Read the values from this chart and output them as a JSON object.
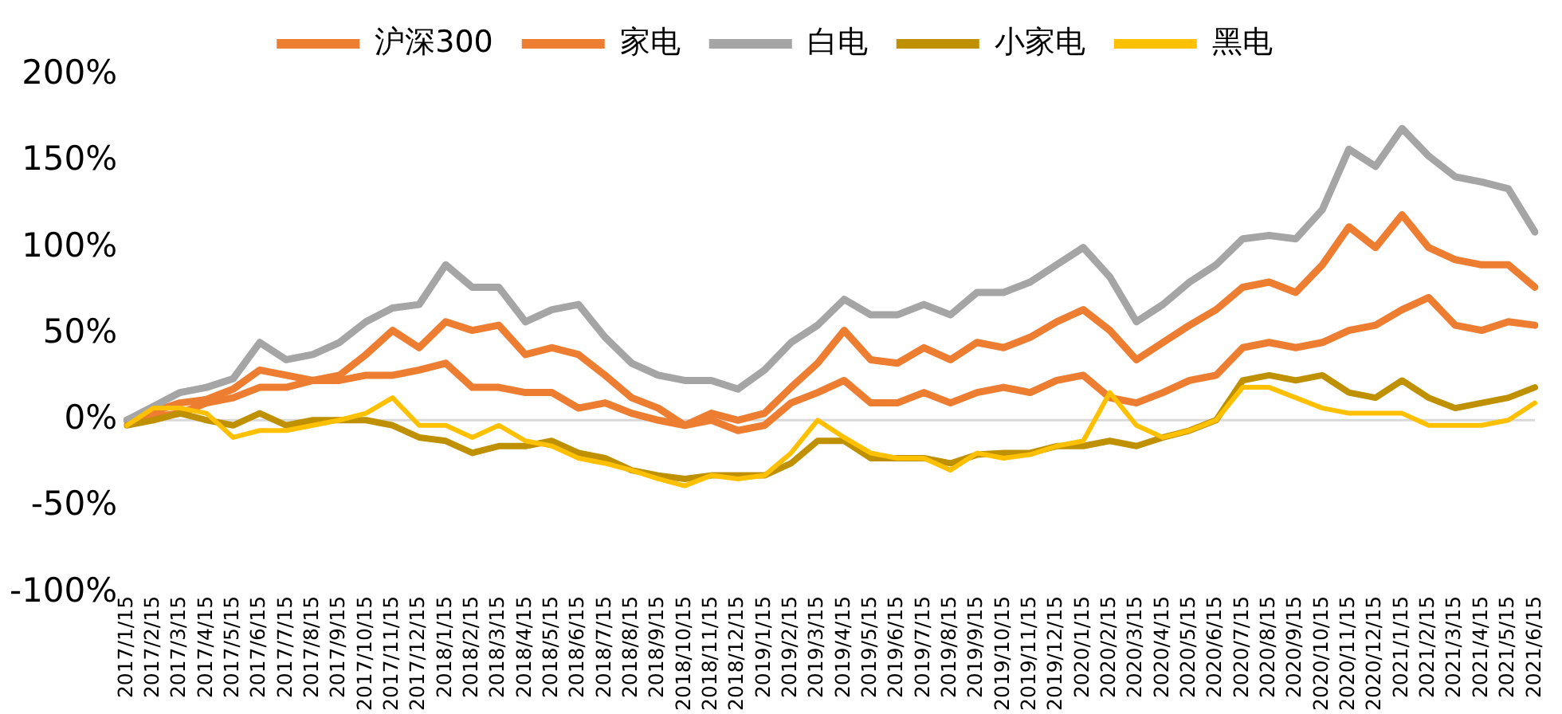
{
  "chart_data": {
    "type": "line",
    "categories": [
      "2017/1/15",
      "2017/2/15",
      "2017/3/15",
      "2017/4/15",
      "2017/5/15",
      "2017/6/15",
      "2017/7/15",
      "2017/8/15",
      "2017/9/15",
      "2017/10/15",
      "2017/11/15",
      "2017/12/15",
      "2018/1/15",
      "2018/2/15",
      "2018/3/15",
      "2018/4/15",
      "2018/5/15",
      "2018/6/15",
      "2018/7/15",
      "2018/8/15",
      "2018/9/15",
      "2018/10/15",
      "2018/11/15",
      "2018/12/15",
      "2019/1/15",
      "2019/2/15",
      "2019/3/15",
      "2019/4/15",
      "2019/5/15",
      "2019/6/15",
      "2019/7/15",
      "2019/8/15",
      "2019/9/15",
      "2019/10/15",
      "2019/11/15",
      "2019/12/15",
      "2020/1/15",
      "2020/2/15",
      "2020/3/15",
      "2020/4/15",
      "2020/5/15",
      "2020/6/15",
      "2020/7/15",
      "2020/8/15",
      "2020/9/15",
      "2020/10/15",
      "2020/11/15",
      "2020/12/15",
      "2021/1/15",
      "2021/2/15",
      "2021/3/15",
      "2021/4/15",
      "2021/5/15",
      "2021/6/15"
    ],
    "series": [
      {
        "name": "沪深300",
        "color": "#ed7d31",
        "values": [
          0,
          2,
          4,
          10,
          13,
          19,
          19,
          23,
          23,
          26,
          26,
          29,
          33,
          19,
          19,
          16,
          16,
          7,
          10,
          4,
          0,
          -3,
          0,
          -6,
          -3,
          10,
          16,
          23,
          10,
          10,
          16,
          10,
          16,
          19,
          16,
          23,
          26,
          13,
          10,
          16,
          23,
          26,
          42,
          45,
          42,
          45,
          52,
          55,
          64,
          71,
          55,
          52,
          57,
          55
        ]
      },
      {
        "name": "家电",
        "color": "#ed7d31",
        "values": [
          0,
          5,
          10,
          12,
          18,
          29,
          26,
          23,
          26,
          38,
          52,
          42,
          57,
          52,
          55,
          38,
          42,
          38,
          26,
          13,
          7,
          -3,
          4,
          0,
          4,
          19,
          33,
          52,
          35,
          33,
          42,
          35,
          45,
          42,
          48,
          57,
          64,
          52,
          35,
          45,
          55,
          64,
          77,
          80,
          74,
          90,
          112,
          100,
          119,
          100,
          93,
          90,
          90,
          77
        ]
      },
      {
        "name": "白电",
        "color": "#a5a5a5",
        "values": [
          0,
          8,
          16,
          19,
          24,
          45,
          35,
          38,
          45,
          57,
          65,
          67,
          90,
          77,
          77,
          57,
          64,
          67,
          48,
          33,
          26,
          23,
          23,
          18,
          29,
          45,
          55,
          70,
          61,
          61,
          67,
          61,
          74,
          74,
          80,
          90,
          100,
          83,
          57,
          67,
          80,
          90,
          105,
          107,
          105,
          122,
          157,
          147,
          169,
          153,
          141,
          138,
          134,
          109
        ]
      },
      {
        "name": "小家电",
        "color": "#bf9000",
        "values": [
          -3,
          0,
          4,
          0,
          -3,
          4,
          -3,
          0,
          0,
          0,
          -3,
          -10,
          -12,
          -19,
          -15,
          -15,
          -12,
          -19,
          -22,
          -29,
          -32,
          -34,
          -32,
          -32,
          -32,
          -25,
          -12,
          -12,
          -22,
          -22,
          -22,
          -25,
          -20,
          -19,
          -19,
          -15,
          -15,
          -12,
          -15,
          -10,
          -6,
          0,
          23,
          26,
          23,
          26,
          16,
          13,
          23,
          13,
          7,
          10,
          13,
          19
        ]
      },
      {
        "name": "黑电",
        "color": "#ffc000",
        "values": [
          -3,
          7,
          7,
          4,
          -10,
          -6,
          -6,
          -3,
          0,
          4,
          13,
          -3,
          -3,
          -10,
          -3,
          -12,
          -15,
          -22,
          -25,
          -29,
          -34,
          -38,
          -32,
          -34,
          -32,
          -19,
          0,
          -10,
          -19,
          -22,
          -22,
          -29,
          -19,
          -22,
          -20,
          -15,
          -12,
          16,
          -3,
          -10,
          -6,
          0,
          19,
          19,
          13,
          7,
          4,
          4,
          4,
          -3,
          -3,
          -3,
          0,
          10
        ]
      }
    ],
    "ylim": [
      -100,
      200
    ],
    "yticks": [
      {
        "value": -100,
        "label": "-100%"
      },
      {
        "value": -50,
        "label": "-50%"
      },
      {
        "value": 0,
        "label": "0%"
      },
      {
        "value": 50,
        "label": "50%"
      },
      {
        "value": 100,
        "label": "100%"
      },
      {
        "value": 150,
        "label": "150%"
      },
      {
        "value": 200,
        "label": "200%"
      }
    ],
    "grid": false,
    "ref_lines": [
      {
        "axis": "y",
        "value": 0,
        "color": "#d9d9d9"
      }
    ],
    "legend": "top"
  }
}
